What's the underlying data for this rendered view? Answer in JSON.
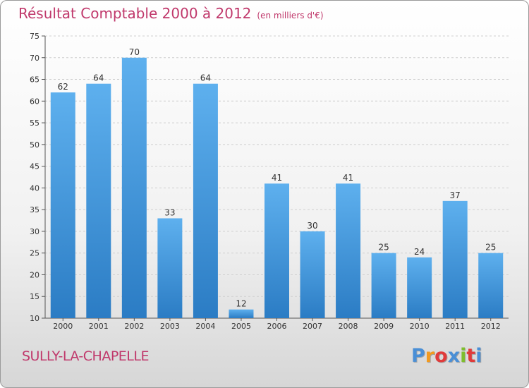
{
  "chart_data": {
    "type": "bar",
    "title": "Résultat Comptable 2000 à 2012",
    "subtitle": "(en milliers d'€)",
    "categories": [
      "2000",
      "2001",
      "2002",
      "2003",
      "2004",
      "2005",
      "2006",
      "2007",
      "2008",
      "2009",
      "2010",
      "2011",
      "2012"
    ],
    "values": [
      62,
      64,
      70,
      33,
      64,
      12,
      41,
      30,
      41,
      25,
      24,
      37,
      25
    ],
    "ylim": [
      10,
      75
    ],
    "yticks": [
      10,
      15,
      20,
      25,
      30,
      35,
      40,
      45,
      50,
      55,
      60,
      65,
      70,
      75
    ],
    "grid": true,
    "bar_color": "#3a8fd6"
  },
  "location": "SULLY-LA-CHAPELLE",
  "brand": {
    "letters": [
      "P",
      "r",
      "o",
      "x",
      "i",
      "t",
      "i"
    ],
    "colors": [
      "#4a8fd6",
      "#f29a1f",
      "#e03b3b",
      "#4a8fd6",
      "#7fbd2e",
      "#e03b3b",
      "#4a8fd6"
    ]
  }
}
